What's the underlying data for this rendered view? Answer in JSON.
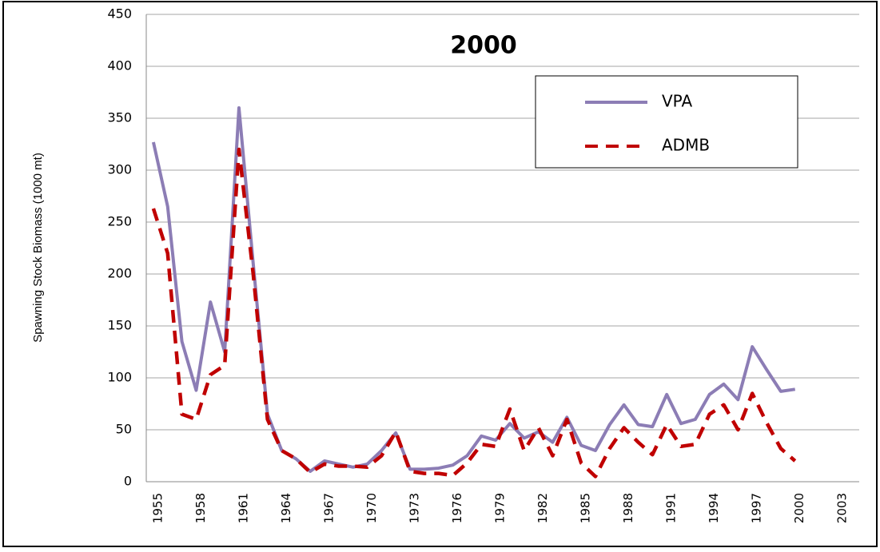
{
  "chart_data": {
    "type": "line",
    "title": "2000",
    "y_label": "Spawning Stock Biomass  (1000 mt)",
    "categories": [
      "1955",
      null,
      null,
      "1958",
      null,
      null,
      "1961",
      null,
      null,
      "1964",
      null,
      null,
      "1967",
      null,
      null,
      "1970",
      null,
      null,
      "1973",
      null,
      null,
      "1976",
      null,
      null,
      "1979",
      null,
      null,
      "1982",
      null,
      null,
      "1985",
      null,
      null,
      "1988",
      null,
      null,
      "1991",
      null,
      null,
      "1994",
      null,
      null,
      "1997",
      null,
      null,
      "2000",
      null,
      null,
      "2003",
      null
    ],
    "series": [
      {
        "name": "VPA",
        "color": "#8c7db5",
        "dash": false,
        "values": [
          327,
          265,
          135,
          88,
          173,
          125,
          360,
          210,
          65,
          30,
          22,
          10,
          20,
          17,
          14,
          17,
          30,
          47,
          12,
          12,
          13,
          16,
          25,
          44,
          40,
          56,
          42,
          48,
          38,
          62,
          35,
          30,
          55,
          74,
          55,
          53,
          84,
          56,
          60,
          84,
          94,
          79,
          130,
          108,
          87,
          89,
          null,
          null,
          null,
          null
        ]
      },
      {
        "name": "ADMB",
        "color": "#c00000",
        "dash": true,
        "values": [
          263,
          220,
          65,
          60,
          103,
          112,
          320,
          200,
          60,
          30,
          22,
          9,
          17,
          15,
          15,
          14,
          25,
          48,
          10,
          8,
          8,
          6,
          18,
          36,
          34,
          70,
          30,
          52,
          25,
          60,
          18,
          5,
          32,
          52,
          38,
          26,
          55,
          34,
          36,
          65,
          74,
          50,
          85,
          57,
          32,
          20,
          null,
          null,
          null,
          null
        ]
      }
    ],
    "ylim": [
      0,
      450
    ],
    "yticks": [
      0,
      50,
      100,
      150,
      200,
      250,
      300,
      350,
      400,
      450
    ],
    "grid": true,
    "legend": "upper right"
  }
}
